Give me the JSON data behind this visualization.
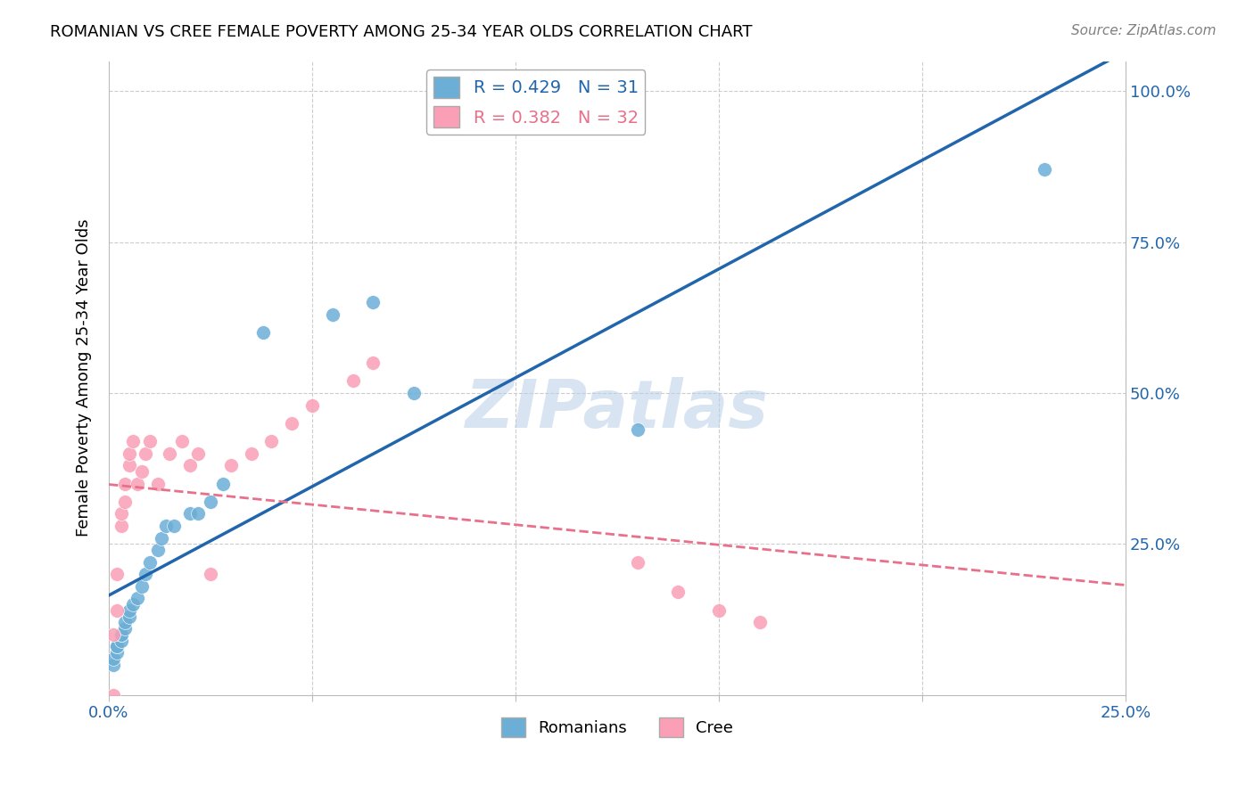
{
  "title": "ROMANIAN VS CREE FEMALE POVERTY AMONG 25-34 YEAR OLDS CORRELATION CHART",
  "source": "Source: ZipAtlas.com",
  "ylabel": "Female Poverty Among 25-34 Year Olds",
  "xlim": [
    0.0,
    0.25
  ],
  "ylim": [
    0.0,
    1.05
  ],
  "r_romanian": 0.429,
  "n_romanian": 31,
  "r_cree": 0.382,
  "n_cree": 32,
  "color_romanian": "#6baed6",
  "color_cree": "#fa9fb5",
  "line_color_romanian": "#2166ac",
  "line_color_cree": "#e8708a",
  "watermark": "ZIPatlas",
  "romanian_x": [
    0.001,
    0.001,
    0.002,
    0.002,
    0.002,
    0.003,
    0.003,
    0.003,
    0.004,
    0.004,
    0.005,
    0.005,
    0.006,
    0.007,
    0.008,
    0.009,
    0.01,
    0.012,
    0.013,
    0.014,
    0.016,
    0.02,
    0.022,
    0.025,
    0.028,
    0.038,
    0.055,
    0.065,
    0.075,
    0.13,
    0.23
  ],
  "romanian_y": [
    0.05,
    0.06,
    0.07,
    0.08,
    0.08,
    0.09,
    0.1,
    0.1,
    0.11,
    0.12,
    0.13,
    0.14,
    0.15,
    0.16,
    0.18,
    0.2,
    0.22,
    0.24,
    0.26,
    0.28,
    0.28,
    0.3,
    0.3,
    0.32,
    0.35,
    0.6,
    0.63,
    0.65,
    0.5,
    0.44,
    0.87
  ],
  "cree_x": [
    0.001,
    0.001,
    0.002,
    0.002,
    0.003,
    0.003,
    0.004,
    0.004,
    0.005,
    0.005,
    0.006,
    0.007,
    0.008,
    0.009,
    0.01,
    0.012,
    0.015,
    0.018,
    0.02,
    0.022,
    0.025,
    0.03,
    0.035,
    0.04,
    0.045,
    0.05,
    0.06,
    0.065,
    0.13,
    0.14,
    0.15,
    0.16
  ],
  "cree_y": [
    0.0,
    0.1,
    0.14,
    0.2,
    0.28,
    0.3,
    0.32,
    0.35,
    0.38,
    0.4,
    0.42,
    0.35,
    0.37,
    0.4,
    0.42,
    0.35,
    0.4,
    0.42,
    0.38,
    0.4,
    0.2,
    0.38,
    0.4,
    0.42,
    0.45,
    0.48,
    0.52,
    0.55,
    0.22,
    0.17,
    0.14,
    0.12
  ],
  "xticks": [
    0.0,
    0.05,
    0.1,
    0.15,
    0.2,
    0.25
  ],
  "yticks": [
    0.0,
    0.25,
    0.5,
    0.75,
    1.0
  ],
  "ytick_labels": [
    "",
    "25.0%",
    "50.0%",
    "75.0%",
    "100.0%"
  ]
}
